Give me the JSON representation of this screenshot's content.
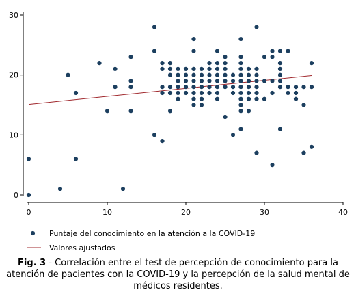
{
  "chart_data": {
    "type": "scatter",
    "title": "",
    "xlabel": "",
    "ylabel": "",
    "xlim": [
      0,
      40
    ],
    "ylim": [
      0,
      30
    ],
    "x_ticks": [
      0,
      10,
      20,
      30,
      40
    ],
    "y_ticks": [
      0,
      10,
      20,
      30
    ],
    "grid": false,
    "legend_position": "bottom",
    "series": [
      {
        "name": "Puntaje del conocimiento en la atención a la COVID-19",
        "kind": "scatter",
        "color": "#1c3f5f",
        "points": [
          [
            0,
            0
          ],
          [
            0,
            6
          ],
          [
            4,
            1
          ],
          [
            5,
            20
          ],
          [
            6,
            6
          ],
          [
            6,
            17
          ],
          [
            9,
            22
          ],
          [
            10,
            14
          ],
          [
            11,
            18
          ],
          [
            11,
            21
          ],
          [
            12,
            1
          ],
          [
            13,
            14
          ],
          [
            13,
            18
          ],
          [
            13,
            19
          ],
          [
            13,
            23
          ],
          [
            16,
            10
          ],
          [
            16,
            24
          ],
          [
            16,
            28
          ],
          [
            17,
            9
          ],
          [
            17,
            17
          ],
          [
            17,
            18
          ],
          [
            17,
            21
          ],
          [
            17,
            22
          ],
          [
            18,
            14
          ],
          [
            18,
            17
          ],
          [
            18,
            18
          ],
          [
            18,
            20
          ],
          [
            18,
            21
          ],
          [
            18,
            22
          ],
          [
            19,
            16
          ],
          [
            19,
            17
          ],
          [
            19,
            18
          ],
          [
            19,
            19
          ],
          [
            19,
            20
          ],
          [
            19,
            21
          ],
          [
            20,
            17
          ],
          [
            20,
            18
          ],
          [
            20,
            19
          ],
          [
            20,
            20
          ],
          [
            20,
            21
          ],
          [
            21,
            15
          ],
          [
            21,
            16
          ],
          [
            21,
            17
          ],
          [
            21,
            18
          ],
          [
            21,
            19
          ],
          [
            21,
            20
          ],
          [
            21,
            21
          ],
          [
            21,
            24
          ],
          [
            21,
            26
          ],
          [
            22,
            15
          ],
          [
            22,
            16
          ],
          [
            22,
            17
          ],
          [
            22,
            18
          ],
          [
            22,
            19
          ],
          [
            22,
            20
          ],
          [
            22,
            21
          ],
          [
            23,
            17
          ],
          [
            23,
            18
          ],
          [
            23,
            19
          ],
          [
            23,
            20
          ],
          [
            23,
            21
          ],
          [
            23,
            22
          ],
          [
            24,
            16
          ],
          [
            24,
            17
          ],
          [
            24,
            18
          ],
          [
            24,
            19
          ],
          [
            24,
            20
          ],
          [
            24,
            21
          ],
          [
            24,
            22
          ],
          [
            24,
            24
          ],
          [
            25,
            13
          ],
          [
            25,
            18
          ],
          [
            25,
            19
          ],
          [
            25,
            20
          ],
          [
            25,
            21
          ],
          [
            25,
            22
          ],
          [
            25,
            23
          ],
          [
            26,
            10
          ],
          [
            26,
            17
          ],
          [
            26,
            18
          ],
          [
            26,
            19
          ],
          [
            26,
            20
          ],
          [
            27,
            11
          ],
          [
            27,
            14
          ],
          [
            27,
            15
          ],
          [
            27,
            16
          ],
          [
            27,
            17
          ],
          [
            27,
            18
          ],
          [
            27,
            19
          ],
          [
            27,
            20
          ],
          [
            27,
            21
          ],
          [
            27,
            22
          ],
          [
            27,
            23
          ],
          [
            27,
            26
          ],
          [
            28,
            14
          ],
          [
            28,
            16
          ],
          [
            28,
            17
          ],
          [
            28,
            18
          ],
          [
            28,
            19
          ],
          [
            28,
            20
          ],
          [
            28,
            21
          ],
          [
            29,
            7
          ],
          [
            29,
            16
          ],
          [
            29,
            17
          ],
          [
            29,
            18
          ],
          [
            29,
            19
          ],
          [
            29,
            20
          ],
          [
            29,
            21
          ],
          [
            29,
            28
          ],
          [
            30,
            16
          ],
          [
            30,
            19
          ],
          [
            30,
            23
          ],
          [
            31,
            5
          ],
          [
            31,
            17
          ],
          [
            31,
            19
          ],
          [
            31,
            23
          ],
          [
            31,
            24
          ],
          [
            32,
            11
          ],
          [
            32,
            18
          ],
          [
            32,
            19
          ],
          [
            32,
            20
          ],
          [
            32,
            21
          ],
          [
            32,
            22
          ],
          [
            32,
            24
          ],
          [
            33,
            17
          ],
          [
            33,
            18
          ],
          [
            33,
            24
          ],
          [
            34,
            16
          ],
          [
            34,
            17
          ],
          [
            34,
            18
          ],
          [
            35,
            7
          ],
          [
            35,
            15
          ],
          [
            35,
            18
          ],
          [
            36,
            8
          ],
          [
            36,
            18
          ],
          [
            36,
            22
          ]
        ]
      },
      {
        "name": "Valores ajustados",
        "kind": "line",
        "color": "#a0282d",
        "points": [
          [
            0,
            15.1
          ],
          [
            36,
            19.9
          ]
        ]
      }
    ]
  },
  "caption": {
    "label": "Fig. 3",
    "text": " - Correlación entre el test de percepción de conocimiento para la atención de pacientes con la COVID-19 y la percepción de la salud mental de médicos residentes."
  }
}
